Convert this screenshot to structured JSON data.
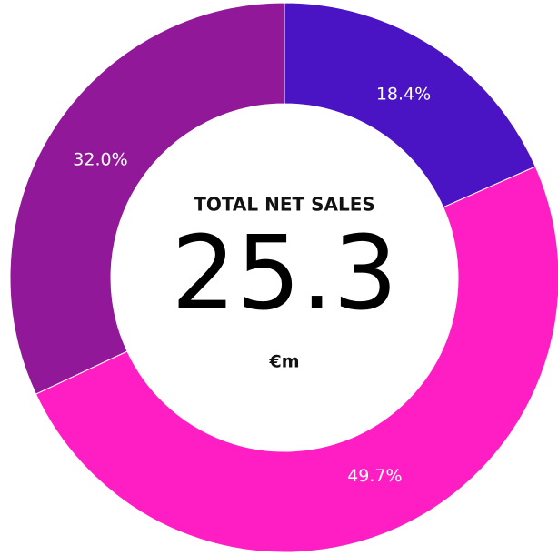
{
  "chart_data": {
    "type": "donut",
    "categories": [
      null,
      null,
      null
    ],
    "values": [
      18.4,
      49.7,
      32.0
    ],
    "value_labels": [
      "18.4%",
      "49.7%",
      "32.0%"
    ],
    "colors": [
      "#4a14c4",
      "#ff1ec4",
      "#911898"
    ],
    "center_title": "TOTAL NET SALES",
    "center_value": 25.3,
    "center_unit": "€m"
  }
}
